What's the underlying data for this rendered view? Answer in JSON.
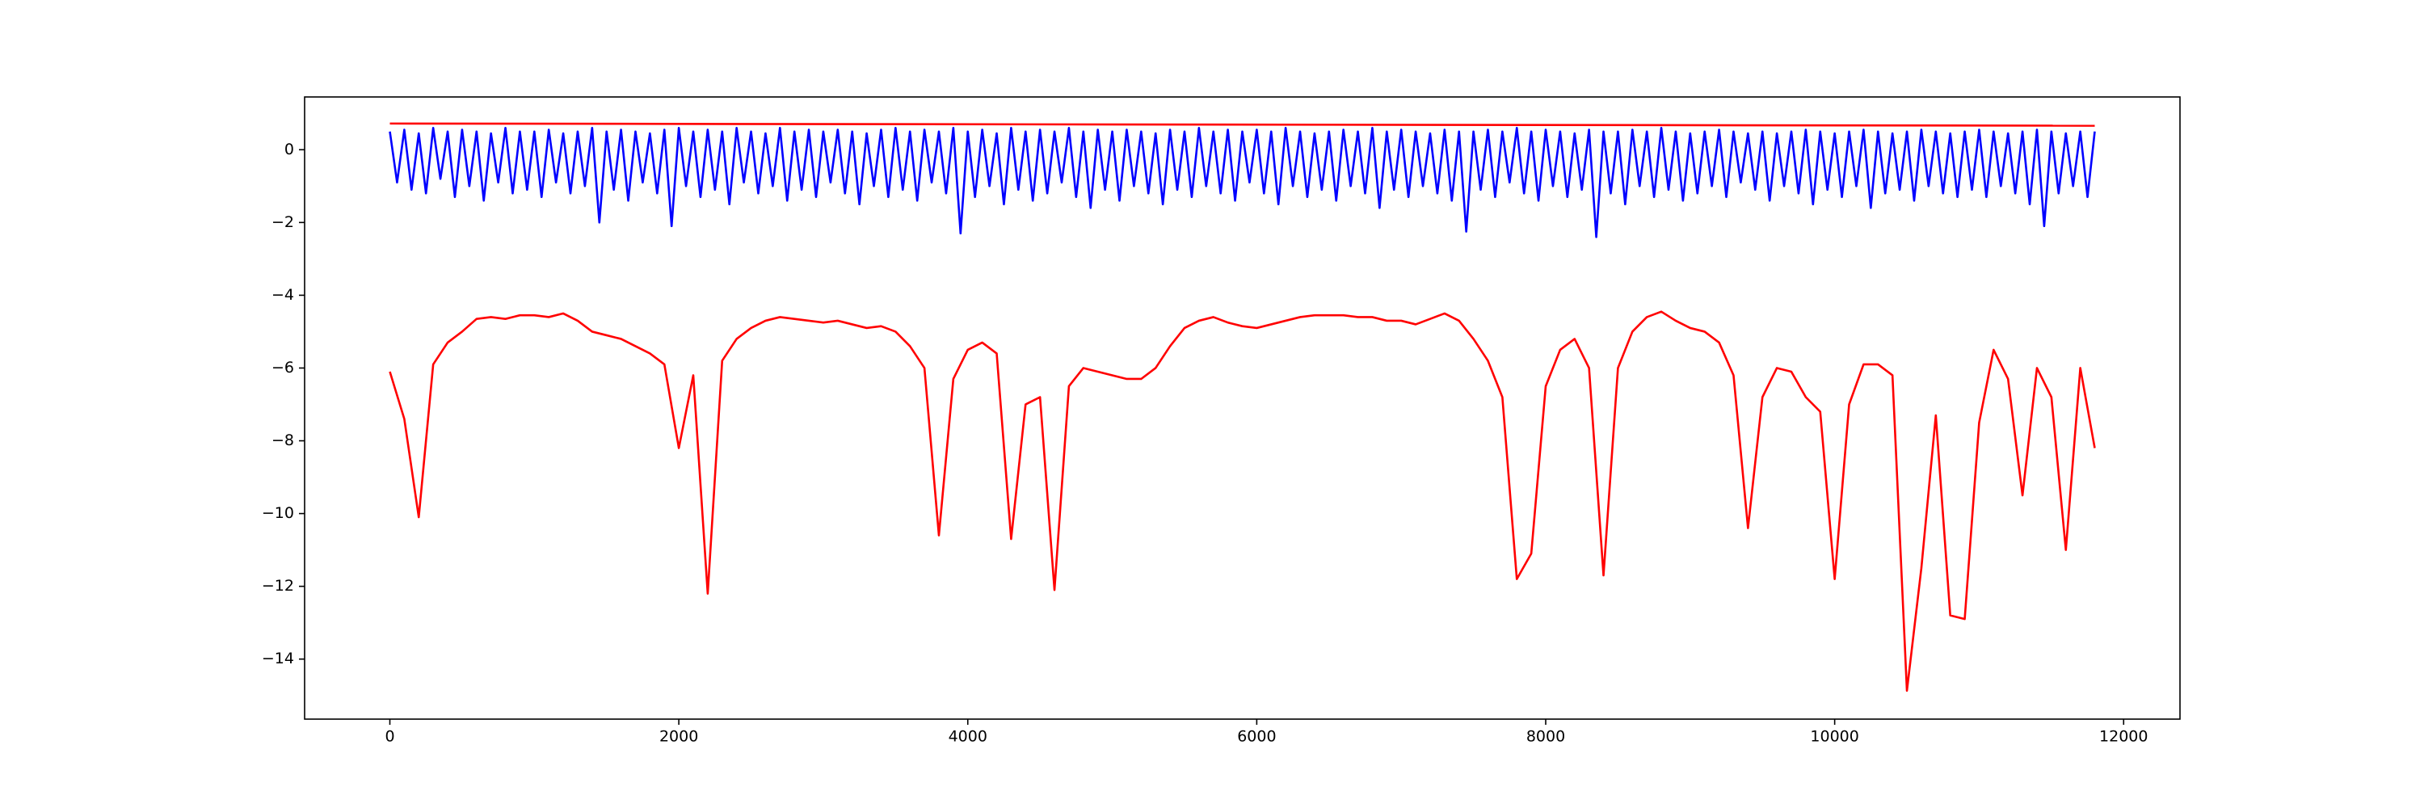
{
  "chart_data": {
    "type": "line",
    "xlim": [
      -590,
      12390
    ],
    "ylim": [
      -15.65,
      1.45
    ],
    "xticks": [
      0,
      2000,
      4000,
      6000,
      8000,
      10000,
      12000
    ],
    "yticks": [
      {
        "value": -14,
        "label": "−14"
      },
      {
        "value": -12,
        "label": "−12"
      },
      {
        "value": -10,
        "label": "−10"
      },
      {
        "value": -8,
        "label": "−8"
      },
      {
        "value": -6,
        "label": "−6"
      },
      {
        "value": -4,
        "label": "−4"
      },
      {
        "value": -2,
        "label": "−2"
      },
      0
    ],
    "series": [
      {
        "color": "#0000ff",
        "x": [
          0,
          50,
          100,
          150,
          200,
          250,
          300,
          350,
          400,
          450,
          500,
          550,
          600,
          650,
          700,
          750,
          800,
          850,
          900,
          950,
          1000,
          1050,
          1100,
          1150,
          1200,
          1250,
          1300,
          1350,
          1400,
          1450,
          1500,
          1550,
          1600,
          1650,
          1700,
          1750,
          1800,
          1850,
          1900,
          1950,
          2000,
          2050,
          2100,
          2150,
          2200,
          2250,
          2300,
          2350,
          2400,
          2450,
          2500,
          2550,
          2600,
          2650,
          2700,
          2750,
          2800,
          2850,
          2900,
          2950,
          3000,
          3050,
          3100,
          3150,
          3200,
          3250,
          3300,
          3350,
          3400,
          3450,
          3500,
          3550,
          3600,
          3650,
          3700,
          3750,
          3800,
          3850,
          3900,
          3950,
          4000,
          4050,
          4100,
          4150,
          4200,
          4250,
          4300,
          4350,
          4400,
          4450,
          4500,
          4550,
          4600,
          4650,
          4700,
          4750,
          4800,
          4850,
          4900,
          4950,
          5000,
          5050,
          5100,
          5150,
          5200,
          5250,
          5300,
          5350,
          5400,
          5450,
          5500,
          5550,
          5600,
          5650,
          5700,
          5750,
          5800,
          5850,
          5900,
          5950,
          6000,
          6050,
          6100,
          6150,
          6200,
          6250,
          6300,
          6350,
          6400,
          6450,
          6500,
          6550,
          6600,
          6650,
          6700,
          6750,
          6800,
          6850,
          6900,
          6950,
          7000,
          7050,
          7100,
          7150,
          7200,
          7250,
          7300,
          7350,
          7400,
          7450,
          7500,
          7550,
          7600,
          7650,
          7700,
          7750,
          7800,
          7850,
          7900,
          7950,
          8000,
          8050,
          8100,
          8150,
          8200,
          8250,
          8300,
          8350,
          8400,
          8450,
          8500,
          8550,
          8600,
          8650,
          8700,
          8750,
          8800,
          8850,
          8900,
          8950,
          9000,
          9050,
          9100,
          9150,
          9200,
          9250,
          9300,
          9350,
          9400,
          9450,
          9500,
          9550,
          9600,
          9650,
          9700,
          9750,
          9800,
          9850,
          9900,
          9950,
          10000,
          10050,
          10100,
          10150,
          10200,
          10250,
          10300,
          10350,
          10400,
          10450,
          10500,
          10550,
          10600,
          10650,
          10700,
          10750,
          10800,
          10850,
          10900,
          10950,
          11000,
          11050,
          11100,
          11150,
          11200,
          11250,
          11300,
          11350,
          11400,
          11450,
          11500,
          11550,
          11600,
          11650,
          11700,
          11750,
          11800
        ],
        "values": [
          0.5,
          -0.9,
          0.55,
          -1.1,
          0.45,
          -1.2,
          0.6,
          -0.8,
          0.5,
          -1.3,
          0.55,
          -1.0,
          0.5,
          -1.4,
          0.45,
          -0.9,
          0.6,
          -1.2,
          0.5,
          -1.1,
          0.5,
          -1.3,
          0.55,
          -0.9,
          0.45,
          -1.2,
          0.5,
          -1.0,
          0.6,
          -2.0,
          0.5,
          -1.1,
          0.55,
          -1.4,
          0.5,
          -0.9,
          0.45,
          -1.2,
          0.55,
          -2.1,
          0.6,
          -1.0,
          0.5,
          -1.3,
          0.55,
          -1.1,
          0.5,
          -1.5,
          0.6,
          -0.9,
          0.5,
          -1.2,
          0.45,
          -1.0,
          0.6,
          -1.4,
          0.5,
          -1.1,
          0.55,
          -1.3,
          0.5,
          -0.9,
          0.55,
          -1.2,
          0.5,
          -1.5,
          0.45,
          -1.0,
          0.55,
          -1.3,
          0.6,
          -1.1,
          0.5,
          -1.4,
          0.55,
          -0.9,
          0.5,
          -1.2,
          0.6,
          -2.3,
          0.5,
          -1.3,
          0.55,
          -1.0,
          0.45,
          -1.5,
          0.6,
          -1.1,
          0.5,
          -1.4,
          0.55,
          -1.2,
          0.5,
          -0.9,
          0.6,
          -1.3,
          0.5,
          -1.6,
          0.55,
          -1.1,
          0.5,
          -1.4,
          0.55,
          -1.0,
          0.5,
          -1.2,
          0.45,
          -1.5,
          0.55,
          -1.1,
          0.5,
          -1.3,
          0.6,
          -1.0,
          0.5,
          -1.2,
          0.55,
          -1.4,
          0.5,
          -0.9,
          0.55,
          -1.2,
          0.5,
          -1.5,
          0.6,
          -1.0,
          0.5,
          -1.3,
          0.45,
          -1.1,
          0.5,
          -1.4,
          0.55,
          -1.0,
          0.5,
          -1.2,
          0.6,
          -1.6,
          0.5,
          -1.1,
          0.55,
          -1.3,
          0.5,
          -1.0,
          0.45,
          -1.2,
          0.55,
          -1.4,
          0.5,
          -2.25,
          0.5,
          -1.1,
          0.55,
          -1.3,
          0.5,
          -0.9,
          0.6,
          -1.2,
          0.5,
          -1.4,
          0.55,
          -1.0,
          0.5,
          -1.3,
          0.45,
          -1.1,
          0.55,
          -2.4,
          0.5,
          -1.2,
          0.5,
          -1.5,
          0.55,
          -1.0,
          0.5,
          -1.3,
          0.6,
          -1.1,
          0.5,
          -1.4,
          0.45,
          -1.2,
          0.5,
          -1.0,
          0.55,
          -1.3,
          0.5,
          -0.9,
          0.45,
          -1.1,
          0.5,
          -1.4,
          0.45,
          -1.0,
          0.5,
          -1.2,
          0.55,
          -1.5,
          0.5,
          -1.1,
          0.45,
          -1.3,
          0.5,
          -1.0,
          0.55,
          -1.6,
          0.5,
          -1.2,
          0.45,
          -1.1,
          0.5,
          -1.4,
          0.55,
          -1.0,
          0.5,
          -1.2,
          0.45,
          -1.3,
          0.5,
          -1.1,
          0.55,
          -1.3,
          0.5,
          -1.0,
          0.45,
          -1.2,
          0.5,
          -1.5,
          0.55,
          -2.1,
          0.5,
          -1.2,
          0.45,
          -1.0,
          0.5,
          -1.3,
          0.5
        ]
      },
      {
        "color": "#ff0000",
        "x": [
          0,
          100,
          200,
          300,
          400,
          500,
          600,
          700,
          800,
          900,
          1000,
          1100,
          1200,
          1300,
          1400,
          1500,
          1600,
          1700,
          1800,
          1900,
          2000,
          2100,
          2200,
          2300,
          2400,
          2500,
          2600,
          2700,
          2800,
          2900,
          3000,
          3100,
          3200,
          3300,
          3400,
          3500,
          3600,
          3700,
          3800,
          3900,
          4000,
          4100,
          4200,
          4300,
          4400,
          4500,
          4600,
          4700,
          4800,
          4900,
          5000,
          5100,
          5200,
          5300,
          5400,
          5500,
          5600,
          5700,
          5800,
          5900,
          6000,
          6100,
          6200,
          6300,
          6400,
          6500,
          6600,
          6700,
          6800,
          6900,
          7000,
          7100,
          7200,
          7300,
          7400,
          7500,
          7600,
          7700,
          7800,
          7900,
          8000,
          8100,
          8200,
          8300,
          8400,
          8500,
          8600,
          8700,
          8800,
          8900,
          9000,
          9100,
          9200,
          9300,
          9400,
          9500,
          9600,
          9700,
          9800,
          9900,
          10000,
          10100,
          10200,
          10300,
          10400,
          10500,
          10600,
          10700,
          10800,
          10900,
          11000,
          11100,
          11200,
          11300,
          11400,
          11500,
          11600,
          11700,
          11800
        ],
        "values": [
          -6.1,
          -7.4,
          -10.1,
          -5.9,
          -5.3,
          -5.0,
          -4.65,
          -4.6,
          -4.65,
          -4.55,
          -4.55,
          -4.6,
          -4.5,
          -4.7,
          -5.0,
          -5.1,
          -5.2,
          -5.4,
          -5.6,
          -5.9,
          -8.2,
          -6.2,
          -12.2,
          -5.8,
          -5.2,
          -4.9,
          -4.7,
          -4.6,
          -4.65,
          -4.7,
          -4.75,
          -4.7,
          -4.8,
          -4.9,
          -4.85,
          -5.0,
          -5.4,
          -6.0,
          -10.6,
          -6.3,
          -5.5,
          -5.3,
          -5.6,
          -10.7,
          -7.0,
          -6.8,
          -12.1,
          -6.5,
          -6.0,
          -6.1,
          -6.2,
          -6.3,
          -6.3,
          -6.0,
          -5.4,
          -4.9,
          -4.7,
          -4.6,
          -4.75,
          -4.85,
          -4.9,
          -4.8,
          -4.7,
          -4.6,
          -4.55,
          -4.55,
          -4.55,
          -4.6,
          -4.6,
          -4.7,
          -4.7,
          -4.8,
          -4.65,
          -4.5,
          -4.7,
          -5.2,
          -5.8,
          -6.8,
          -11.8,
          -11.1,
          -6.5,
          -5.5,
          -5.2,
          -6.0,
          -11.7,
          -6.0,
          -5.0,
          -4.6,
          -4.45,
          -4.7,
          -4.9,
          -5.0,
          -5.3,
          -6.2,
          -10.4,
          -6.8,
          -6.0,
          -6.1,
          -6.8,
          -7.2,
          -11.8,
          -7.0,
          -5.9,
          -5.9,
          -6.2,
          -14.87,
          -11.5,
          -7.3,
          -12.8,
          -12.9,
          -7.5,
          -5.5,
          -6.3,
          -9.5,
          -6.0,
          -6.8,
          -11.0,
          -6.0,
          -8.2
        ]
      },
      {
        "color": "#ff0000",
        "x": [
          0,
          11800
        ],
        "values": [
          0.72,
          0.66
        ]
      }
    ]
  }
}
